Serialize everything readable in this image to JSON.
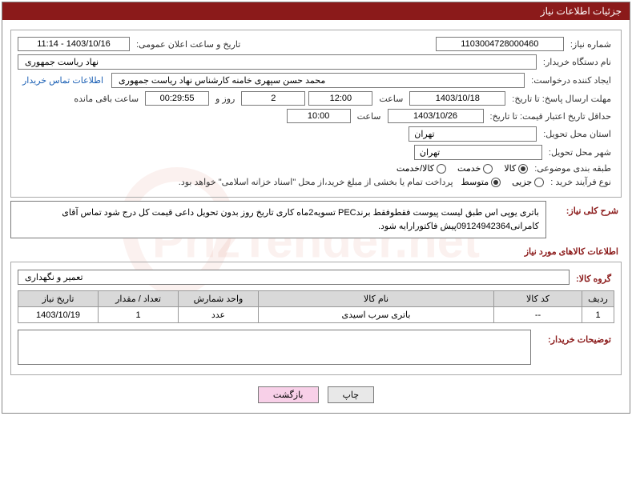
{
  "colors": {
    "header_bg": "#8b1a1a",
    "header_fg": "#ffffff",
    "border": "#7a7a7a",
    "link": "#1a5fb4",
    "section_label": "#8b1a1a",
    "table_header_bg": "#d9d9d9",
    "btn_pink": "#f8d0e8"
  },
  "header": {
    "title": "جزئیات اطلاعات نیاز"
  },
  "fields": {
    "need_number_label": "شماره نیاز:",
    "need_number": "1103004728000460",
    "announce_label": "تاریخ و ساعت اعلان عمومی:",
    "announce_value": "1403/10/16 - 11:14",
    "buyer_org_label": "نام دستگاه خریدار:",
    "buyer_org": "نهاد ریاست جمهوری",
    "requester_label": "ایجاد کننده درخواست:",
    "requester": "محمد حسن سپهری خامنه کارشناس نهاد ریاست جمهوری",
    "contact_link": "اطلاعات تماس خریدار",
    "deadline_send_label": "مهلت ارسال پاسخ: تا تاریخ:",
    "deadline_send_date": "1403/10/18",
    "deadline_send_time_label": "ساعت",
    "deadline_send_time": "12:00",
    "remain_days": "2",
    "remain_days_label": "روز و",
    "remain_time": "00:29:55",
    "remain_time_label": "ساعت باقی مانده",
    "min_validity_label": "حداقل تاریخ اعتبار قیمت: تا تاریخ:",
    "min_validity_date": "1403/10/26",
    "min_validity_time_label": "ساعت",
    "min_validity_time": "10:00",
    "province_label": "استان محل تحویل:",
    "province": "تهران",
    "city_label": "شهر محل تحویل:",
    "city": "تهران",
    "classify_label": "طبقه بندی موضوعی:",
    "process_label": "نوع فرآیند خرید :",
    "process_note": "پرداخت تمام یا بخشی از مبلغ خرید،از محل \"اسناد خزانه اسلامی\" خواهد بود."
  },
  "classify_options": {
    "opt1": "کالا",
    "opt2": "خدمت",
    "opt3": "کالا/خدمت",
    "checked": "opt1"
  },
  "process_options": {
    "opt1": "جزیی",
    "opt2": "متوسط",
    "checked": "opt2"
  },
  "desc": {
    "section_label": "شرح کلی نیاز:",
    "text": "باتری یوپی اس طبق لیست پیوست فقطوفقط برندPEC تسویه2ماه کاری تاریخ روز بدون تحویل داعی قیمت کل درج شود تماس آقای کامرانی09124942364پیش فاکتورارایه شود."
  },
  "items": {
    "section_label": "اطلاعات کالاهای مورد نیاز",
    "group_label": "گروه کالا:",
    "group_value": "تعمیر و نگهداری",
    "columns": {
      "row": "ردیف",
      "code": "کد کالا",
      "name": "نام کالا",
      "unit": "واحد شمارش",
      "qty": "تعداد / مقدار",
      "date": "تاریخ نیاز"
    },
    "rows": [
      {
        "row": "1",
        "code": "--",
        "name": "باتری سرب اسیدی",
        "unit": "عدد",
        "qty": "1",
        "date": "1403/10/19"
      }
    ]
  },
  "buyer_notes": {
    "label": "توضیحات خریدار:",
    "text": ""
  },
  "buttons": {
    "print": "چاپ",
    "back": "بازگشت"
  }
}
